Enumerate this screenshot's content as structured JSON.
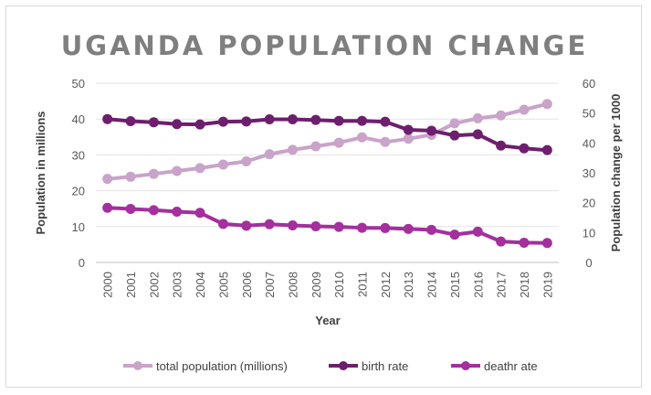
{
  "chart_data": {
    "type": "line",
    "title": "UGANDA POPULATION CHANGE",
    "xlabel": "Year",
    "ylabel": "Population in millions",
    "y2label": "Population change per 1000",
    "ylim": [
      0,
      50
    ],
    "y2lim": [
      0,
      60
    ],
    "yticks": [
      "0",
      "10",
      "20",
      "30",
      "40",
      "50"
    ],
    "y2ticks": [
      "0",
      "10",
      "20",
      "30",
      "40",
      "50",
      "60"
    ],
    "categories": [
      "2000",
      "2001",
      "2002",
      "2003",
      "2004",
      "2005",
      "2006",
      "2007",
      "2008",
      "2009",
      "2010",
      "2011",
      "2012",
      "2013",
      "2014",
      "2015",
      "2016",
      "2017",
      "2018",
      "2019"
    ],
    "grid": true,
    "legend_position": "bottom",
    "series": [
      {
        "name": "total population (millions)",
        "axis": "left",
        "color": "#c9a3c9",
        "values": [
          23.3,
          23.9,
          24.7,
          25.5,
          26.3,
          27.3,
          28.2,
          30.2,
          31.4,
          32.4,
          33.4,
          34.9,
          33.6,
          34.5,
          35.6,
          38.8,
          40.2,
          41.0,
          42.6,
          44.2
        ]
      },
      {
        "name": "birth rate",
        "axis": "right",
        "color": "#6d1f6d",
        "values": [
          48.0,
          47.3,
          46.9,
          46.3,
          46.2,
          47.1,
          47.2,
          47.9,
          47.9,
          47.7,
          47.4,
          47.4,
          47.1,
          44.4,
          44.1,
          42.5,
          42.9,
          39.1,
          38.2,
          37.6
        ]
      },
      {
        "name": "deathr ate",
        "axis": "right",
        "color": "#a3309c",
        "values": [
          18.3,
          17.9,
          17.5,
          17.0,
          16.6,
          12.9,
          12.3,
          12.8,
          12.4,
          12.1,
          11.9,
          11.6,
          11.5,
          11.2,
          10.9,
          9.3,
          10.3,
          7.0,
          6.6,
          6.5
        ]
      }
    ]
  }
}
